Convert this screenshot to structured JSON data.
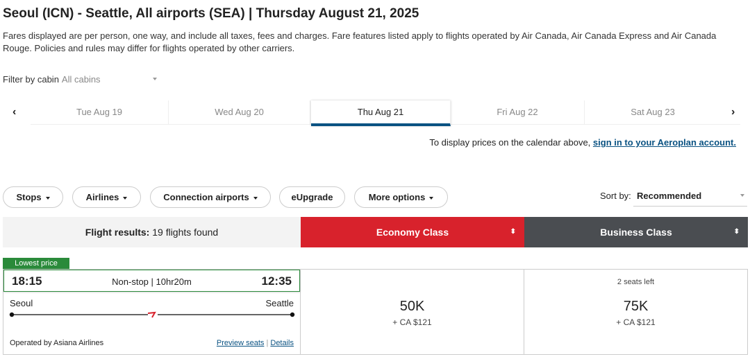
{
  "title": "Seoul (ICN) - Seattle, All airports (SEA)  |  Thursday August 21, 2025",
  "note": "Fares displayed are per person, one way, and include all taxes, fees and charges. Fare features listed apply to flights operated by Air Canada, Air Canada Express and Air Canada Rouge. Policies and rules may differ for flights operated by other carriers.",
  "filter": {
    "label": "Filter by cabin",
    "value": "All cabins"
  },
  "dates": [
    {
      "label": "Tue Aug 19"
    },
    {
      "label": "Wed Aug 20"
    },
    {
      "label": "Thu Aug 21",
      "active": true
    },
    {
      "label": "Fri Aug 22"
    },
    {
      "label": "Sat Aug 23"
    }
  ],
  "signin": {
    "text": "To display prices on the calendar above, ",
    "link": "sign in to your Aeroplan account."
  },
  "filters": {
    "stops": "Stops",
    "airlines": "Airlines",
    "connection": "Connection airports",
    "eupgrade": "eUpgrade",
    "more": "More options"
  },
  "sort": {
    "label": "Sort by:",
    "value": "Recommended"
  },
  "results": {
    "label": "Flight results:",
    "count": "19 flights found",
    "economy": "Economy Class",
    "business": "Business Class"
  },
  "colors": {
    "economy": "#d8222c",
    "business": "#4a4d51",
    "accent": "#0a5282",
    "badge": "#2a8a3a"
  },
  "flight": {
    "badge": "Lowest price",
    "depart": "18:15",
    "arrive": "12:35",
    "summary": "Non-stop | 10hr20m",
    "origin": "Seoul",
    "destination": "Seattle",
    "operator": "Operated by Asiana Airlines",
    "preview": "Preview seats",
    "details": "Details",
    "economy": {
      "points": "50K",
      "tax": "+ CA $121"
    },
    "business": {
      "seats": "2 seats left",
      "points": "75K",
      "tax": "+ CA $121"
    }
  }
}
